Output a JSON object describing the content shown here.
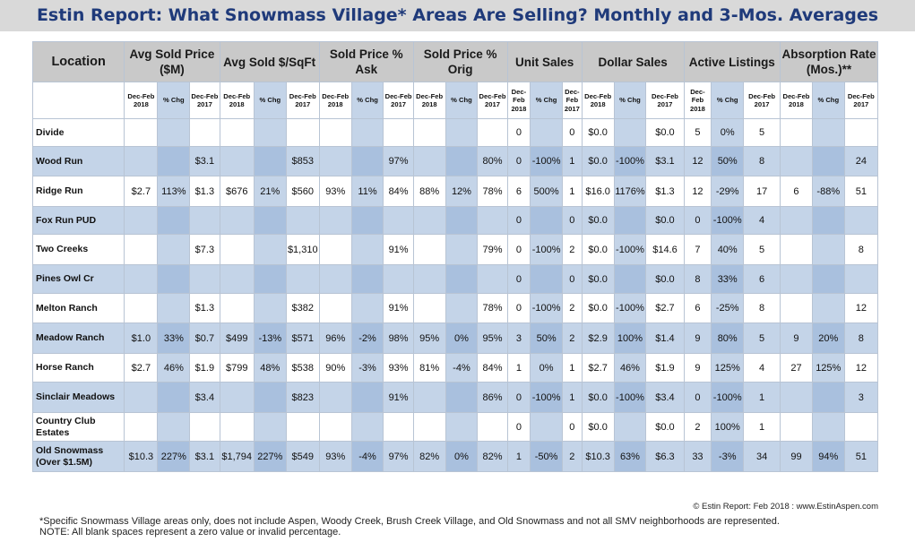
{
  "title": "Estin Report: What Snowmass Village* Areas Are Selling? Monthly and 3-Mos. Averages",
  "header": {
    "location": "Location",
    "groups": [
      "Avg Sold Price ($M)",
      "Avg Sold $/SqFt",
      "Sold Price % Ask",
      "Sold Price % Orig",
      "Unit Sales",
      "Dollar Sales",
      "Active Listings",
      "Absorption Rate (Mos.)**"
    ],
    "sub": [
      "Dec-Feb 2018",
      "% Chg",
      "Dec-Feb 2017"
    ]
  },
  "rows": [
    {
      "location": "Divide",
      "values": [
        "",
        "",
        "",
        "",
        "",
        "",
        "",
        "",
        "",
        "",
        "",
        "",
        "0",
        "",
        "0",
        "$0.0",
        "",
        "$0.0",
        "5",
        "0%",
        "5",
        "",
        "",
        ""
      ]
    },
    {
      "location": "Wood Run",
      "values": [
        "",
        "",
        "$3.1",
        "",
        "",
        "$853",
        "",
        "",
        "97%",
        "",
        "",
        "80%",
        "0",
        "-100%",
        "1",
        "$0.0",
        "-100%",
        "$3.1",
        "12",
        "50%",
        "8",
        "",
        "",
        "24"
      ]
    },
    {
      "location": "Ridge Run",
      "values": [
        "$2.7",
        "113%",
        "$1.3",
        "$676",
        "21%",
        "$560",
        "93%",
        "11%",
        "84%",
        "88%",
        "12%",
        "78%",
        "6",
        "500%",
        "1",
        "$16.0",
        "1176%",
        "$1.3",
        "12",
        "-29%",
        "17",
        "6",
        "-88%",
        "51"
      ]
    },
    {
      "location": "Fox Run PUD",
      "values": [
        "",
        "",
        "",
        "",
        "",
        "",
        "",
        "",
        "",
        "",
        "",
        "",
        "0",
        "",
        "0",
        "$0.0",
        "",
        "$0.0",
        "0",
        "-100%",
        "4",
        "",
        "",
        ""
      ]
    },
    {
      "location": "Two Creeks",
      "values": [
        "",
        "",
        "$7.3",
        "",
        "",
        "$1,310",
        "",
        "",
        "91%",
        "",
        "",
        "79%",
        "0",
        "-100%",
        "2",
        "$0.0",
        "-100%",
        "$14.6",
        "7",
        "40%",
        "5",
        "",
        "",
        "8"
      ]
    },
    {
      "location": "Pines Owl Cr",
      "values": [
        "",
        "",
        "",
        "",
        "",
        "",
        "",
        "",
        "",
        "",
        "",
        "",
        "0",
        "",
        "0",
        "$0.0",
        "",
        "$0.0",
        "8",
        "33%",
        "6",
        "",
        "",
        ""
      ]
    },
    {
      "location": "Melton Ranch",
      "values": [
        "",
        "",
        "$1.3",
        "",
        "",
        "$382",
        "",
        "",
        "91%",
        "",
        "",
        "78%",
        "0",
        "-100%",
        "2",
        "$0.0",
        "-100%",
        "$2.7",
        "6",
        "-25%",
        "8",
        "",
        "",
        "12"
      ]
    },
    {
      "location": "Meadow Ranch",
      "values": [
        "$1.0",
        "33%",
        "$0.7",
        "$499",
        "-13%",
        "$571",
        "96%",
        "-2%",
        "98%",
        "95%",
        "0%",
        "95%",
        "3",
        "50%",
        "2",
        "$2.9",
        "100%",
        "$1.4",
        "9",
        "80%",
        "5",
        "9",
        "20%",
        "8"
      ]
    },
    {
      "location": "Horse Ranch",
      "values": [
        "$2.7",
        "46%",
        "$1.9",
        "$799",
        "48%",
        "$538",
        "90%",
        "-3%",
        "93%",
        "81%",
        "-4%",
        "84%",
        "1",
        "0%",
        "1",
        "$2.7",
        "46%",
        "$1.9",
        "9",
        "125%",
        "4",
        "27",
        "125%",
        "12"
      ]
    },
    {
      "location": "Sinclair Meadows",
      "values": [
        "",
        "",
        "$3.4",
        "",
        "",
        "$823",
        "",
        "",
        "91%",
        "",
        "",
        "86%",
        "0",
        "-100%",
        "1",
        "$0.0",
        "-100%",
        "$3.4",
        "0",
        "-100%",
        "1",
        "",
        "",
        "3"
      ]
    },
    {
      "location": "Country Club Estates",
      "values": [
        "",
        "",
        "",
        "",
        "",
        "",
        "",
        "",
        "",
        "",
        "",
        "",
        "0",
        "",
        "0",
        "$0.0",
        "",
        "$0.0",
        "2",
        "100%",
        "1",
        "",
        "",
        ""
      ]
    },
    {
      "location": "Old Snowmass (Over $1.5M)",
      "values": [
        "$10.3",
        "227%",
        "$3.1",
        "$1,794",
        "227%",
        "$549",
        "93%",
        "-4%",
        "97%",
        "82%",
        "0%",
        "82%",
        "1",
        "-50%",
        "2",
        "$10.3",
        "63%",
        "$6.3",
        "33",
        "-3%",
        "34",
        "99",
        "94%",
        "51"
      ]
    }
  ],
  "copyright": "© Estin Report: Feb 2018 : www.EstinAspen.com",
  "footnotes": [
    "*Specific Snowmass Village areas only, does not include Aspen, Woody Creek, Brush Creek Village, and Old Snowmass and not all SMV neighborhoods are represented.",
    "NOTE: All blank spaces represent a zero value or invalid percentage."
  ],
  "colors": {
    "title_text": "#1f3a7a",
    "title_bg": "#d9d9d9",
    "header_bg": "#c9c9c9",
    "band_light": "#c4d4e8",
    "band_dark": "#a9c0de"
  }
}
